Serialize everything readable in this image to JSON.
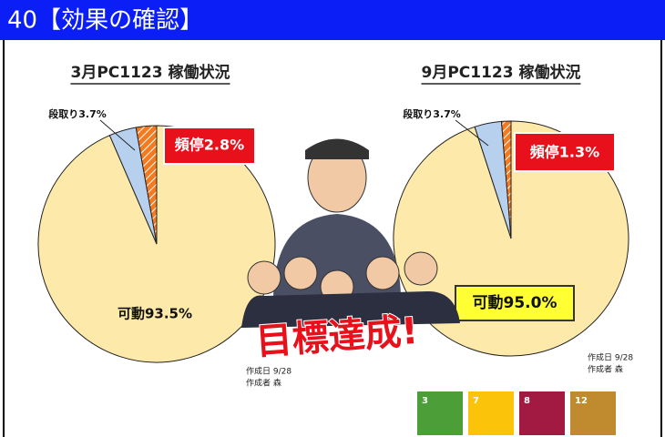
{
  "header": {
    "title": "40【効果の確認】"
  },
  "chart_data": [
    {
      "type": "pie",
      "title": "3月PC1123 稼働状況",
      "values": [
        93.5,
        3.7,
        2.8
      ],
      "value_labels": [
        "可動93.5%",
        "段取り3.7%",
        "頻停2.8%"
      ],
      "colors": [
        "#fde9a9",
        "#b7d0ee",
        "#f47a20"
      ]
    },
    {
      "type": "pie",
      "title": "9月PC1123 稼働状況",
      "values": [
        95.0,
        3.7,
        1.3
      ],
      "value_labels": [
        "可動95.0%",
        "段取り3.7%",
        "頻停1.3%"
      ],
      "colors": [
        "#fde9a9",
        "#b7d0ee",
        "#f47a20"
      ]
    }
  ],
  "goal_text": "目標達成!",
  "notes": [
    [
      "作成日 9/28",
      "作成者 森"
    ],
    [
      "作成日 9/28",
      "作成者 森"
    ]
  ],
  "sdg_icons": [
    {
      "number": "3",
      "color": "#4c9f38"
    },
    {
      "number": "7",
      "color": "#fcc30b"
    },
    {
      "number": "8",
      "color": "#a21942"
    },
    {
      "number": "12",
      "color": "#bf8b2e"
    }
  ]
}
